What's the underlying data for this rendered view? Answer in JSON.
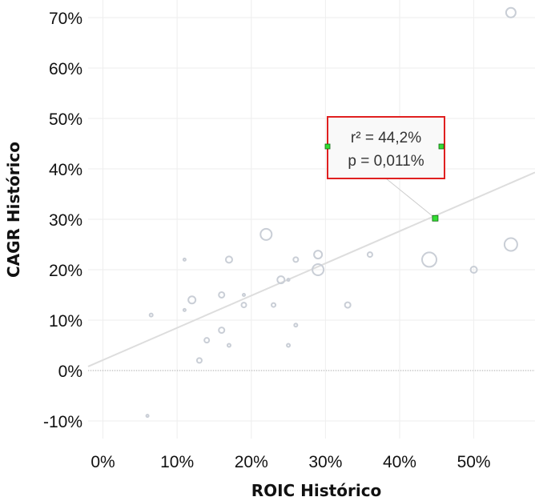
{
  "chart_data": {
    "type": "scatter",
    "xlabel": "ROIC Histórico",
    "ylabel": "CAGR Histórico",
    "xlim": [
      -0.02,
      0.5825
    ],
    "ylim": [
      -0.135,
      0.735
    ],
    "x_ticks": [
      0,
      0.1,
      0.2,
      0.3,
      0.4,
      0.5
    ],
    "x_tick_labels": [
      "0%",
      "10%",
      "20%",
      "30%",
      "40%",
      "50%"
    ],
    "y_ticks": [
      -0.1,
      0,
      0.1,
      0.2,
      0.3,
      0.4,
      0.5,
      0.6,
      0.7
    ],
    "y_tick_labels": [
      "-10%",
      "0%",
      "10%",
      "20%",
      "30%",
      "40%",
      "50%",
      "60%",
      "70%"
    ],
    "grid": true,
    "points": [
      {
        "x": 0.55,
        "y": 0.71,
        "size": 6
      },
      {
        "x": 0.22,
        "y": 0.27,
        "size": 7
      },
      {
        "x": 0.44,
        "y": 0.22,
        "size": 9
      },
      {
        "x": 0.55,
        "y": 0.25,
        "size": 8
      },
      {
        "x": 0.29,
        "y": 0.23,
        "size": 5
      },
      {
        "x": 0.29,
        "y": 0.2,
        "size": 7
      },
      {
        "x": 0.36,
        "y": 0.23,
        "size": 3
      },
      {
        "x": 0.5,
        "y": 0.2,
        "size": 4
      },
      {
        "x": 0.11,
        "y": 0.22,
        "size": 1.5
      },
      {
        "x": 0.17,
        "y": 0.22,
        "size": 4
      },
      {
        "x": 0.26,
        "y": 0.22,
        "size": 3
      },
      {
        "x": 0.24,
        "y": 0.18,
        "size": 4.5
      },
      {
        "x": 0.25,
        "y": 0.18,
        "size": 1.5
      },
      {
        "x": 0.12,
        "y": 0.14,
        "size": 4.5
      },
      {
        "x": 0.16,
        "y": 0.15,
        "size": 3.5
      },
      {
        "x": 0.19,
        "y": 0.15,
        "size": 1.5
      },
      {
        "x": 0.11,
        "y": 0.12,
        "size": 1.5
      },
      {
        "x": 0.19,
        "y": 0.13,
        "size": 3
      },
      {
        "x": 0.23,
        "y": 0.13,
        "size": 2.5
      },
      {
        "x": 0.33,
        "y": 0.13,
        "size": 3.5
      },
      {
        "x": 0.065,
        "y": 0.11,
        "size": 2
      },
      {
        "x": 0.16,
        "y": 0.08,
        "size": 3.5
      },
      {
        "x": 0.26,
        "y": 0.09,
        "size": 2
      },
      {
        "x": 0.14,
        "y": 0.06,
        "size": 3
      },
      {
        "x": 0.17,
        "y": 0.05,
        "size": 2
      },
      {
        "x": 0.25,
        "y": 0.05,
        "size": 2
      },
      {
        "x": 0.13,
        "y": 0.02,
        "size": 3
      },
      {
        "x": 0.06,
        "y": -0.09,
        "size": 1.5
      }
    ],
    "trend_line": {
      "x": [
        -0.02,
        0.5825
      ],
      "y": [
        0.008,
        0.393
      ]
    },
    "annotation": {
      "lines": [
        "r² = 44,2%",
        "p = 0,011%"
      ],
      "anchor": {
        "x": 0.448,
        "y": 0.302
      }
    },
    "colors": {
      "points": "#c9ced6",
      "trend": "#dddddd",
      "grid": "#eeeeee",
      "zero_line": "#aaaaaa",
      "annotation_border": "#e02020",
      "handle": "#33dd33"
    }
  }
}
